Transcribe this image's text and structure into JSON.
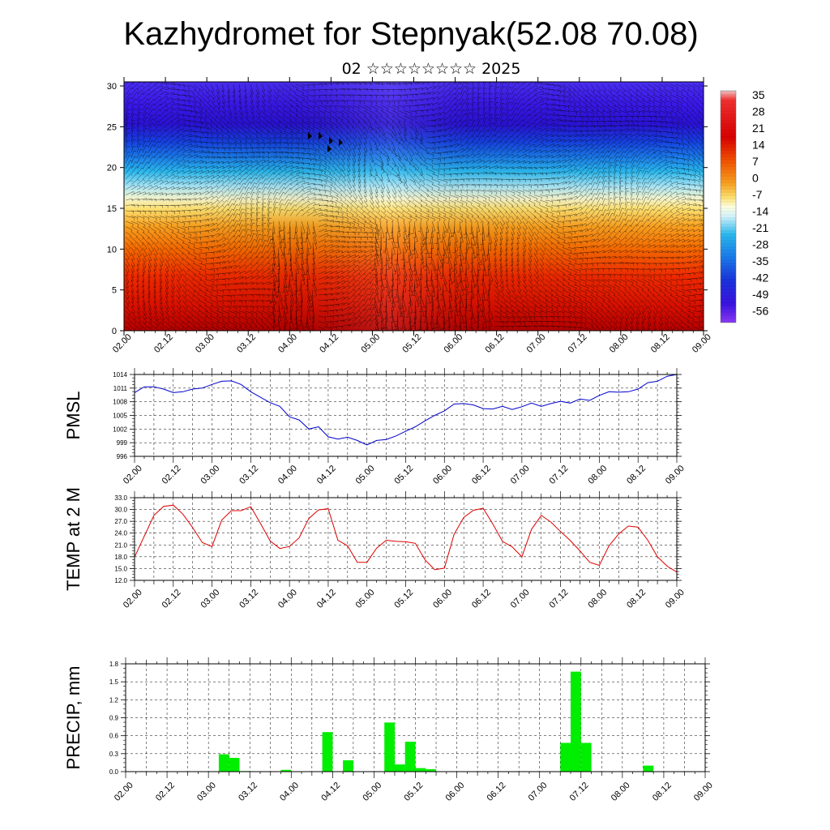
{
  "title": "Kazhydromet for Stepnyak(52.08 70.08)",
  "subtitle": "02 ☆☆☆☆☆☆☆☆ 2025",
  "colors": {
    "pmsl_line": "#0000cc",
    "temp_line": "#dd0000",
    "precip_bar": "#00ee00",
    "warm_deep": "#b40000",
    "cold_deep": "#2a00d6"
  },
  "chart_data": [
    {
      "type": "heatmap",
      "name": "cross-section",
      "x_tick_labels": [
        "02.00",
        "02.12",
        "03.00",
        "03.12",
        "04.00",
        "04.12",
        "05.00",
        "05.12",
        "06.00",
        "06.12",
        "07.00",
        "07.12",
        "08.00",
        "08.12",
        "09.00"
      ],
      "y_ticks": [
        0,
        5,
        10,
        15,
        20,
        25,
        30
      ],
      "ylim": [
        0,
        30.5
      ],
      "colorbar_labels": [
        "35",
        "28",
        "21",
        "14",
        "7",
        "0",
        "-7",
        "-14",
        "-21",
        "-28",
        "-35",
        "-42",
        "-49",
        "-56"
      ],
      "overlay": "wind-barbs"
    },
    {
      "type": "line",
      "ylabel": "PMSL",
      "x_tick_labels": [
        "02.00",
        "02.12",
        "03.00",
        "03.12",
        "04.00",
        "04.12",
        "05.00",
        "05.12",
        "06.00",
        "06.12",
        "07.00",
        "07.12",
        "08.00",
        "08.12",
        "09.00"
      ],
      "y_ticks": [
        "996",
        "999",
        "1002",
        "1005",
        "1008",
        "1011",
        "1014"
      ],
      "ylim": [
        996,
        1014
      ],
      "x": [
        0,
        3,
        6,
        9,
        12,
        15,
        18,
        21,
        24,
        27,
        30,
        33,
        36,
        39,
        42,
        45,
        48,
        51,
        54,
        57,
        60,
        63,
        66,
        69,
        72,
        75,
        78,
        81,
        84,
        87,
        90,
        93,
        96,
        99,
        102,
        105,
        108,
        111,
        114,
        117,
        120,
        123,
        126,
        129,
        132,
        135,
        138,
        141,
        144,
        147,
        150,
        153,
        156,
        159,
        162,
        165,
        168
      ],
      "values": [
        1010,
        1011.3,
        1011.3,
        1010.8,
        1010,
        1010.2,
        1010.8,
        1011,
        1011.8,
        1012.5,
        1012.6,
        1011.8,
        1010.2,
        1009,
        1007.8,
        1007,
        1004.7,
        1004,
        1002,
        1002.5,
        1000.3,
        999.8,
        1000.2,
        999.5,
        998.5,
        999.5,
        999.7,
        1000.5,
        1001.5,
        1002.5,
        1003.8,
        1005,
        1006,
        1007.5,
        1007.6,
        1007.3,
        1006.5,
        1006.4,
        1007,
        1006.3,
        1006.9,
        1007.7,
        1007,
        1007.6,
        1008.1,
        1007.7,
        1008.6,
        1008.3,
        1009.4,
        1010.2,
        1010.1,
        1010.2,
        1010.8,
        1012.2,
        1012.5,
        1013.6,
        1014
      ]
    },
    {
      "type": "line",
      "ylabel": "TEMP at 2 M",
      "x_tick_labels": [
        "02.00",
        "02.12",
        "03.00",
        "03.12",
        "04.00",
        "04.12",
        "05.00",
        "05.12",
        "06.00",
        "06.12",
        "07.00",
        "07.12",
        "08.00",
        "08.12",
        "09.00"
      ],
      "y_ticks": [
        "12.0",
        "15.0",
        "18.0",
        "21.0",
        "24.0",
        "27.0",
        "30.0",
        "33.0"
      ],
      "ylim": [
        12,
        33
      ],
      "x": [
        0,
        6,
        9,
        12,
        15,
        18,
        21,
        24,
        27,
        30,
        33,
        36,
        39,
        42,
        45,
        48,
        51,
        54,
        57,
        60,
        63,
        66,
        69,
        72,
        75,
        78,
        81,
        84,
        87,
        90,
        93,
        96,
        99,
        102,
        105,
        108,
        111,
        114,
        117,
        120,
        123,
        126,
        129,
        132,
        135,
        138,
        141,
        144,
        147,
        150,
        153,
        156,
        159,
        162,
        165,
        168
      ],
      "values": [
        17.9,
        28.5,
        30.8,
        31.1,
        28.8,
        25.4,
        21.6,
        20.6,
        27.3,
        29.7,
        29.7,
        30.7,
        26.5,
        22,
        20.1,
        20.6,
        22.8,
        27.7,
        29.9,
        30.2,
        22.2,
        20.8,
        16.6,
        16.6,
        20.2,
        22.2,
        21.9,
        21.8,
        21.4,
        17.2,
        14.7,
        15.1,
        23.7,
        28,
        29.8,
        30.3,
        26.3,
        21.9,
        20.5,
        18,
        25,
        28.5,
        26.8,
        24.4,
        22.1,
        19.5,
        16.6,
        15.8,
        20.8,
        23.8,
        25.8,
        25.5,
        22.2,
        18,
        15.6,
        14.1
      ]
    },
    {
      "type": "bar",
      "ylabel": "PRECIP, mm",
      "x_tick_labels": [
        "02.00",
        "02.12",
        "03.00",
        "03.12",
        "04.00",
        "04.12",
        "05.00",
        "05.12",
        "06.00",
        "06.12",
        "07.00",
        "07.12",
        "08.00",
        "08.12",
        "09.00"
      ],
      "y_ticks": [
        "0.0",
        "0.3",
        "0.6",
        "0.9",
        "1.2",
        "1.5",
        "1.8"
      ],
      "ylim": [
        0,
        1.8
      ],
      "x": [
        27,
        30,
        33,
        45,
        57,
        63,
        75,
        78,
        81,
        84,
        87,
        126,
        129,
        132,
        150
      ],
      "values": [
        0.29,
        0.23,
        0.01,
        0.03,
        0.66,
        0.19,
        0.82,
        0.12,
        0.5,
        0.06,
        0.04,
        0.48,
        1.67,
        0.48,
        0.1
      ]
    }
  ]
}
